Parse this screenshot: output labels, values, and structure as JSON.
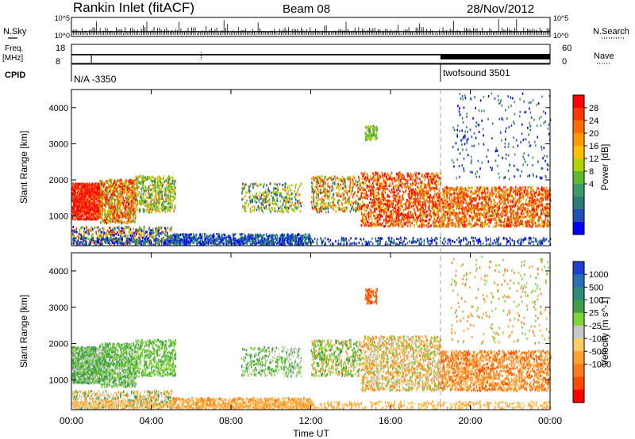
{
  "header": {
    "title": "Rankin Inlet (fitACF)",
    "beam": "Beam 08",
    "date": "28/Nov/2012"
  },
  "top_strips": {
    "nsky_label": "N.Sky",
    "nsearch_label": "N.Search",
    "count_ticks": [
      "10^5",
      "10^0"
    ],
    "freq_label": "Freq.",
    "freq_unit": "[MHz]",
    "freq_ticks": [
      18,
      8
    ],
    "nave_label": "Nave",
    "nave_ticks": [
      60,
      0
    ],
    "cpid_label": "CPID",
    "cpid_segments": [
      {
        "name": "N/A -3350",
        "start_hour": 0
      },
      {
        "name": "twofsound 3501",
        "start_hour": 18.5
      }
    ]
  },
  "chart_data": [
    {
      "type": "heatmap",
      "name": "power",
      "ylabel": "Slant Range [km]",
      "colorbar_label": "Power [dB]",
      "colorbar_ticks": [
        28,
        24,
        20,
        16,
        12,
        8,
        4
      ],
      "colorbar_colors": [
        "#ff0000",
        "#ff3a00",
        "#ff6e00",
        "#ff9900",
        "#ffbf00",
        "#b4d200",
        "#5fb832",
        "#3c9b64",
        "#2c7a78",
        "#1f4fb4",
        "#0000ff"
      ],
      "ylim": [
        180,
        4500
      ],
      "yticks": [
        1000,
        2000,
        3000,
        4000
      ]
    },
    {
      "type": "heatmap",
      "name": "velocity",
      "ylabel": "Slant Range [km]",
      "colorbar_label": "Velocity [m s^-1]",
      "colorbar_ticks": [
        1000,
        500,
        100,
        25,
        -25,
        -100,
        -500,
        -1000
      ],
      "colorbar_colors": [
        "#1f3fd0",
        "#2a6fb8",
        "#2f8a7a",
        "#3f9e4a",
        "#7ed43a",
        "#c8c8c8",
        "#ffcc66",
        "#ffa033",
        "#ff7a1a",
        "#ff4a00",
        "#ff0000"
      ],
      "ylim": [
        180,
        4500
      ],
      "yticks": [
        1000,
        2000,
        3000,
        4000
      ]
    }
  ],
  "x_axis": {
    "xlabel": "Time UT",
    "xticks": [
      "00:00",
      "04:00",
      "08:00",
      "12:00",
      "16:00",
      "20:00",
      "00:00"
    ],
    "xlim": [
      0,
      24
    ]
  },
  "colors": {
    "power_high": "#ff0000",
    "power_low": "#0000ff",
    "ground_scatter": "#bebebe",
    "dashed_marker": "#aaaaaa"
  }
}
